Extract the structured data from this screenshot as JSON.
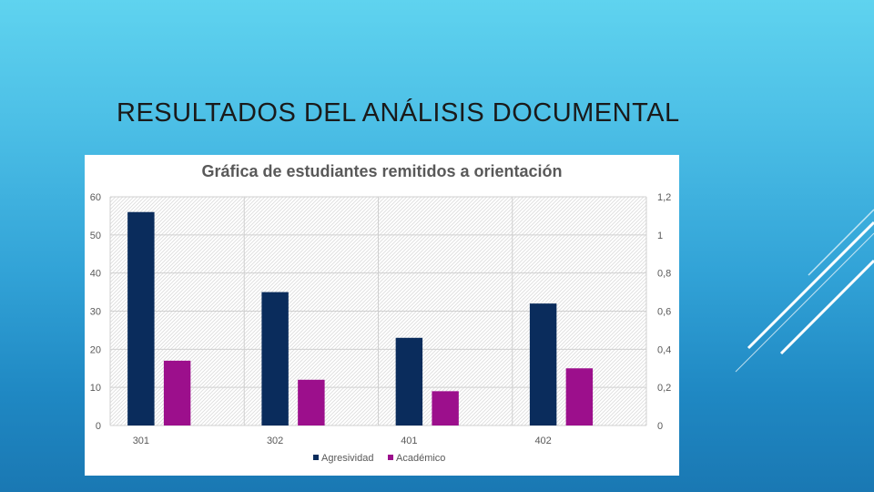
{
  "slide": {
    "title": "RESULTADOS DEL ANÁLISIS DOCUMENTAL"
  },
  "colors": {
    "agresividad": "#0a2c5c",
    "academico": "#9c0f8c",
    "gridline": "#d0d0d0",
    "axis_text": "#595959"
  },
  "chart_data": {
    "type": "bar",
    "title": "Gráfica de estudiantes remitidos a orientación",
    "categories": [
      "301",
      "302",
      "401",
      "402"
    ],
    "series": [
      {
        "name": "Agresividad",
        "values": [
          56,
          35,
          23,
          32
        ]
      },
      {
        "name": "Académico",
        "values": [
          17,
          12,
          9,
          15
        ]
      }
    ],
    "ylim": [
      0,
      60
    ],
    "yticks": [
      "0",
      "10",
      "20",
      "30",
      "40",
      "50",
      "60"
    ],
    "y2lim": [
      0,
      1.2
    ],
    "y2ticks": [
      "0",
      "0,2",
      "0,4",
      "0,6",
      "0,8",
      "1",
      "1,2"
    ],
    "legend_position": "bottom",
    "grid": true
  }
}
